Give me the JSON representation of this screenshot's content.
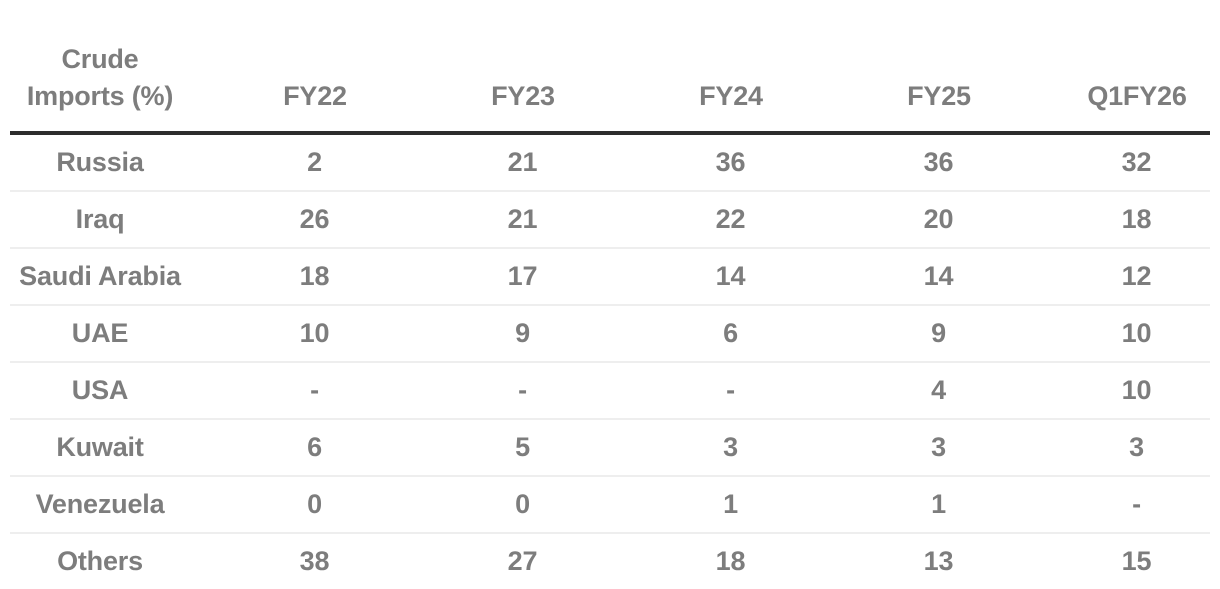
{
  "style": {
    "text_gray": "#7d7d7d",
    "header_rule": "#2d2d2d",
    "row_divider": "#eeeeee",
    "background": "#ffffff"
  },
  "chart_data": {
    "type": "table",
    "corner_header": "Crude Imports (%)",
    "columns": [
      "FY22",
      "FY23",
      "FY24",
      "FY25",
      "Q1FY26"
    ],
    "rows": [
      {
        "label": "Russia",
        "values": [
          "2",
          "21",
          "36",
          "36",
          "32"
        ]
      },
      {
        "label": "Iraq",
        "values": [
          "26",
          "21",
          "22",
          "20",
          "18"
        ]
      },
      {
        "label": "Saudi Arabia",
        "values": [
          "18",
          "17",
          "14",
          "14",
          "12"
        ]
      },
      {
        "label": "UAE",
        "values": [
          "10",
          "9",
          "6",
          "9",
          "10"
        ]
      },
      {
        "label": "USA",
        "values": [
          "-",
          "-",
          "-",
          "4",
          "10"
        ]
      },
      {
        "label": "Kuwait",
        "values": [
          "6",
          "5",
          "3",
          "3",
          "3"
        ]
      },
      {
        "label": "Venezuela",
        "values": [
          "0",
          "0",
          "1",
          "1",
          "-"
        ]
      },
      {
        "label": "Others",
        "values": [
          "38",
          "27",
          "18",
          "13",
          "15"
        ]
      }
    ]
  }
}
